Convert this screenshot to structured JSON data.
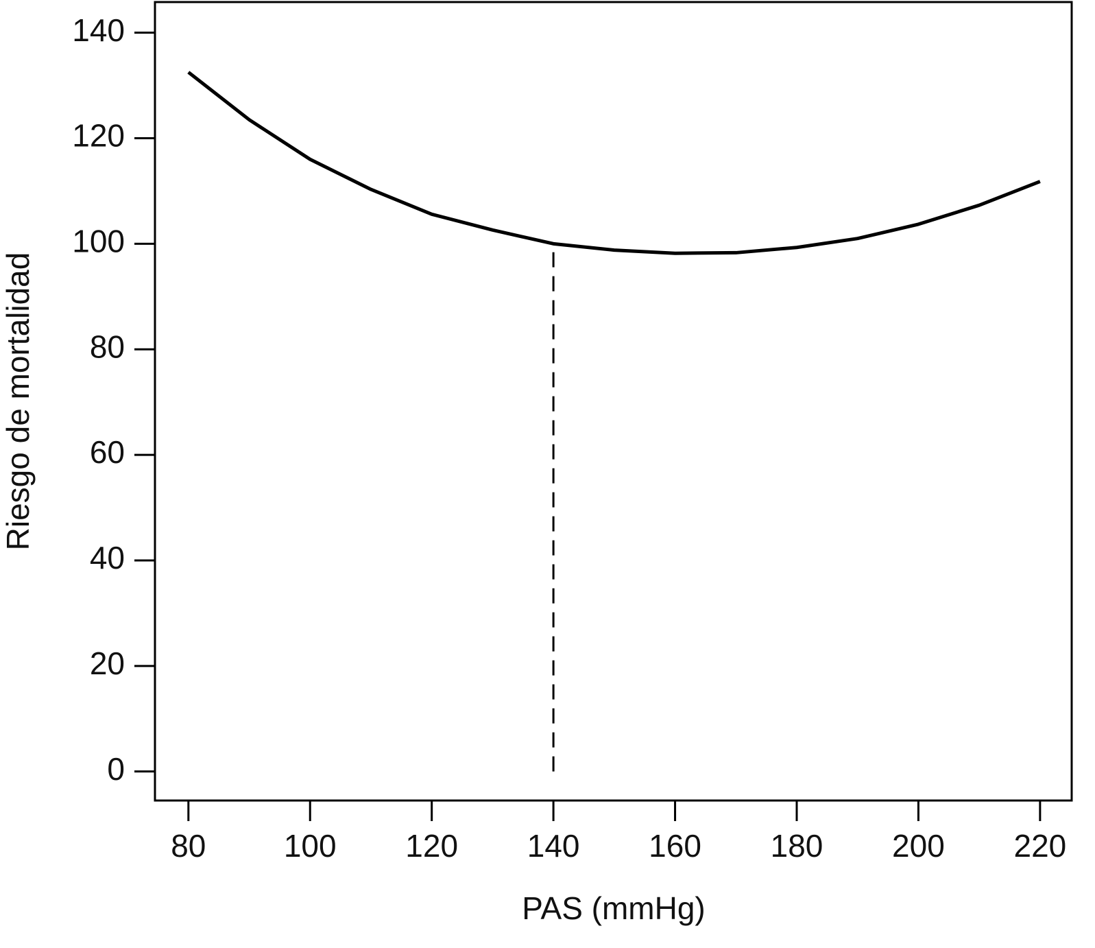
{
  "chart_data": {
    "type": "line",
    "x_label": "PAS (mmHg)",
    "y_label": "Riesgo de mortalidad",
    "x": [
      80,
      90,
      100,
      110,
      120,
      130,
      140,
      150,
      160,
      170,
      180,
      190,
      200,
      210,
      220
    ],
    "series": [
      {
        "color": "#000000",
        "values": [
          132.5,
          123.5,
          116,
          110.3,
          105.6,
          102.6,
          100,
          98.8,
          98.2,
          98.3,
          99.3,
          101,
          103.7,
          107.3,
          111.8
        ]
      }
    ],
    "reference_line": {
      "x": 140,
      "ymin": 0,
      "ymax": 100
    },
    "xlim": [
      74.5,
      225.2
    ],
    "ylim": [
      -5.5,
      145.8
    ],
    "xticks": [
      80,
      100,
      120,
      140,
      160,
      180,
      200,
      220
    ],
    "yticks": [
      0,
      20,
      40,
      60,
      80,
      100,
      120,
      140
    ]
  }
}
